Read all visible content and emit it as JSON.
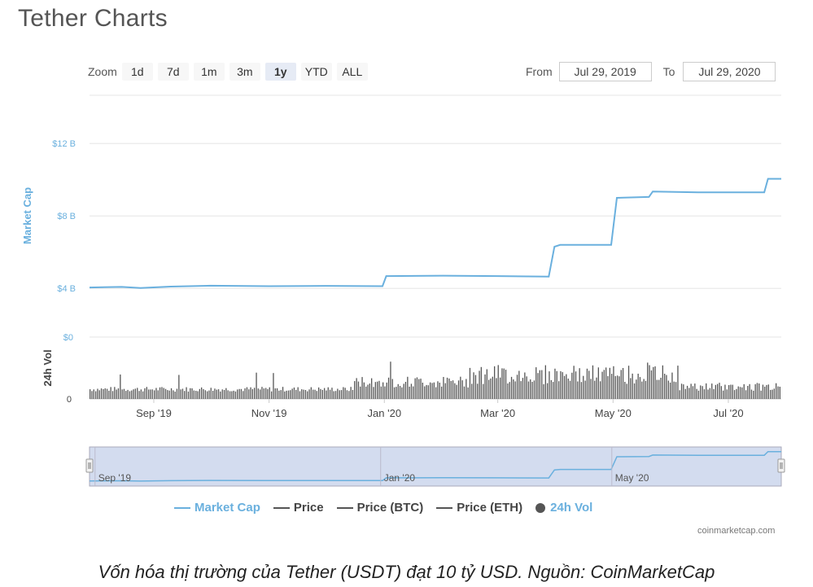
{
  "title": "Tether Charts",
  "zoom": {
    "label": "Zoom",
    "buttons": [
      "1d",
      "7d",
      "1m",
      "3m",
      "1y",
      "YTD",
      "ALL"
    ],
    "active": "1y"
  },
  "range": {
    "from_label": "From",
    "from_value": "Jul 29, 2019",
    "to_label": "To",
    "to_value": "Jul 29, 2020"
  },
  "colors": {
    "market_cap": "#6ab0de",
    "volume": "#555555",
    "grid": "#e6e6e6",
    "navigator_fill": "#d3dcef"
  },
  "chart_data": {
    "type": "line",
    "x_range": [
      "2019-07-29",
      "2020-07-29"
    ],
    "x_ticks": [
      {
        "date": "2019-09-01",
        "label": "Sep '19"
      },
      {
        "date": "2019-11-01",
        "label": "Nov '19"
      },
      {
        "date": "2020-01-01",
        "label": "Jan '20"
      },
      {
        "date": "2020-03-01",
        "label": "Mar '20"
      },
      {
        "date": "2020-05-01",
        "label": "May '20"
      },
      {
        "date": "2020-07-01",
        "label": "Jul '20"
      }
    ],
    "market_cap_axis": {
      "label": "Market Cap",
      "ticks": [
        {
          "v": 4,
          "label": "$4 B"
        },
        {
          "v": 8,
          "label": "$8 B"
        },
        {
          "v": 12,
          "label": "$12 B"
        }
      ],
      "range": [
        3.2,
        13
      ]
    },
    "volume_axis": {
      "label": "24h Vol",
      "ticks": [
        {
          "v": 0,
          "label": "0"
        },
        {
          "v": 1,
          "label": "$0"
        }
      ]
    },
    "series": [
      {
        "name": "Market Cap",
        "points": [
          [
            "2019-07-29",
            4.05
          ],
          [
            "2019-08-15",
            4.08
          ],
          [
            "2019-08-25",
            4.02
          ],
          [
            "2019-09-10",
            4.1
          ],
          [
            "2019-10-01",
            4.15
          ],
          [
            "2019-11-01",
            4.12
          ],
          [
            "2019-12-01",
            4.14
          ],
          [
            "2019-12-31",
            4.12
          ],
          [
            "2020-01-02",
            4.68
          ],
          [
            "2020-02-01",
            4.7
          ],
          [
            "2020-03-01",
            4.68
          ],
          [
            "2020-03-28",
            4.65
          ],
          [
            "2020-03-31",
            6.3
          ],
          [
            "2020-04-03",
            6.4
          ],
          [
            "2020-04-30",
            6.4
          ],
          [
            "2020-05-03",
            9.0
          ],
          [
            "2020-05-20",
            9.05
          ],
          [
            "2020-05-22",
            9.35
          ],
          [
            "2020-06-15",
            9.3
          ],
          [
            "2020-07-20",
            9.3
          ],
          [
            "2020-07-22",
            10.05
          ],
          [
            "2020-07-29",
            10.05
          ]
        ]
      }
    ],
    "legend": [
      {
        "name": "Market Cap",
        "color": "#6ab0de"
      },
      {
        "name": "Price",
        "color": "#555555"
      },
      {
        "name": "Price (BTC)",
        "color": "#555555"
      },
      {
        "name": "Price (ETH)",
        "color": "#555555"
      },
      {
        "name": "24h Vol",
        "color": "#555555",
        "marker": "dot"
      }
    ],
    "navigator": {
      "ticks": [
        {
          "date": "2019-09-01",
          "label": "Sep '19"
        },
        {
          "date": "2020-01-01",
          "label": "Jan '20"
        },
        {
          "date": "2020-05-01",
          "label": "May '20"
        }
      ]
    }
  },
  "credit": "coinmarketcap.com",
  "caption": "Vốn hóa thị trường của Tether (USDT) đạt 10 tỷ USD. Nguồn: CoinMarketCap"
}
